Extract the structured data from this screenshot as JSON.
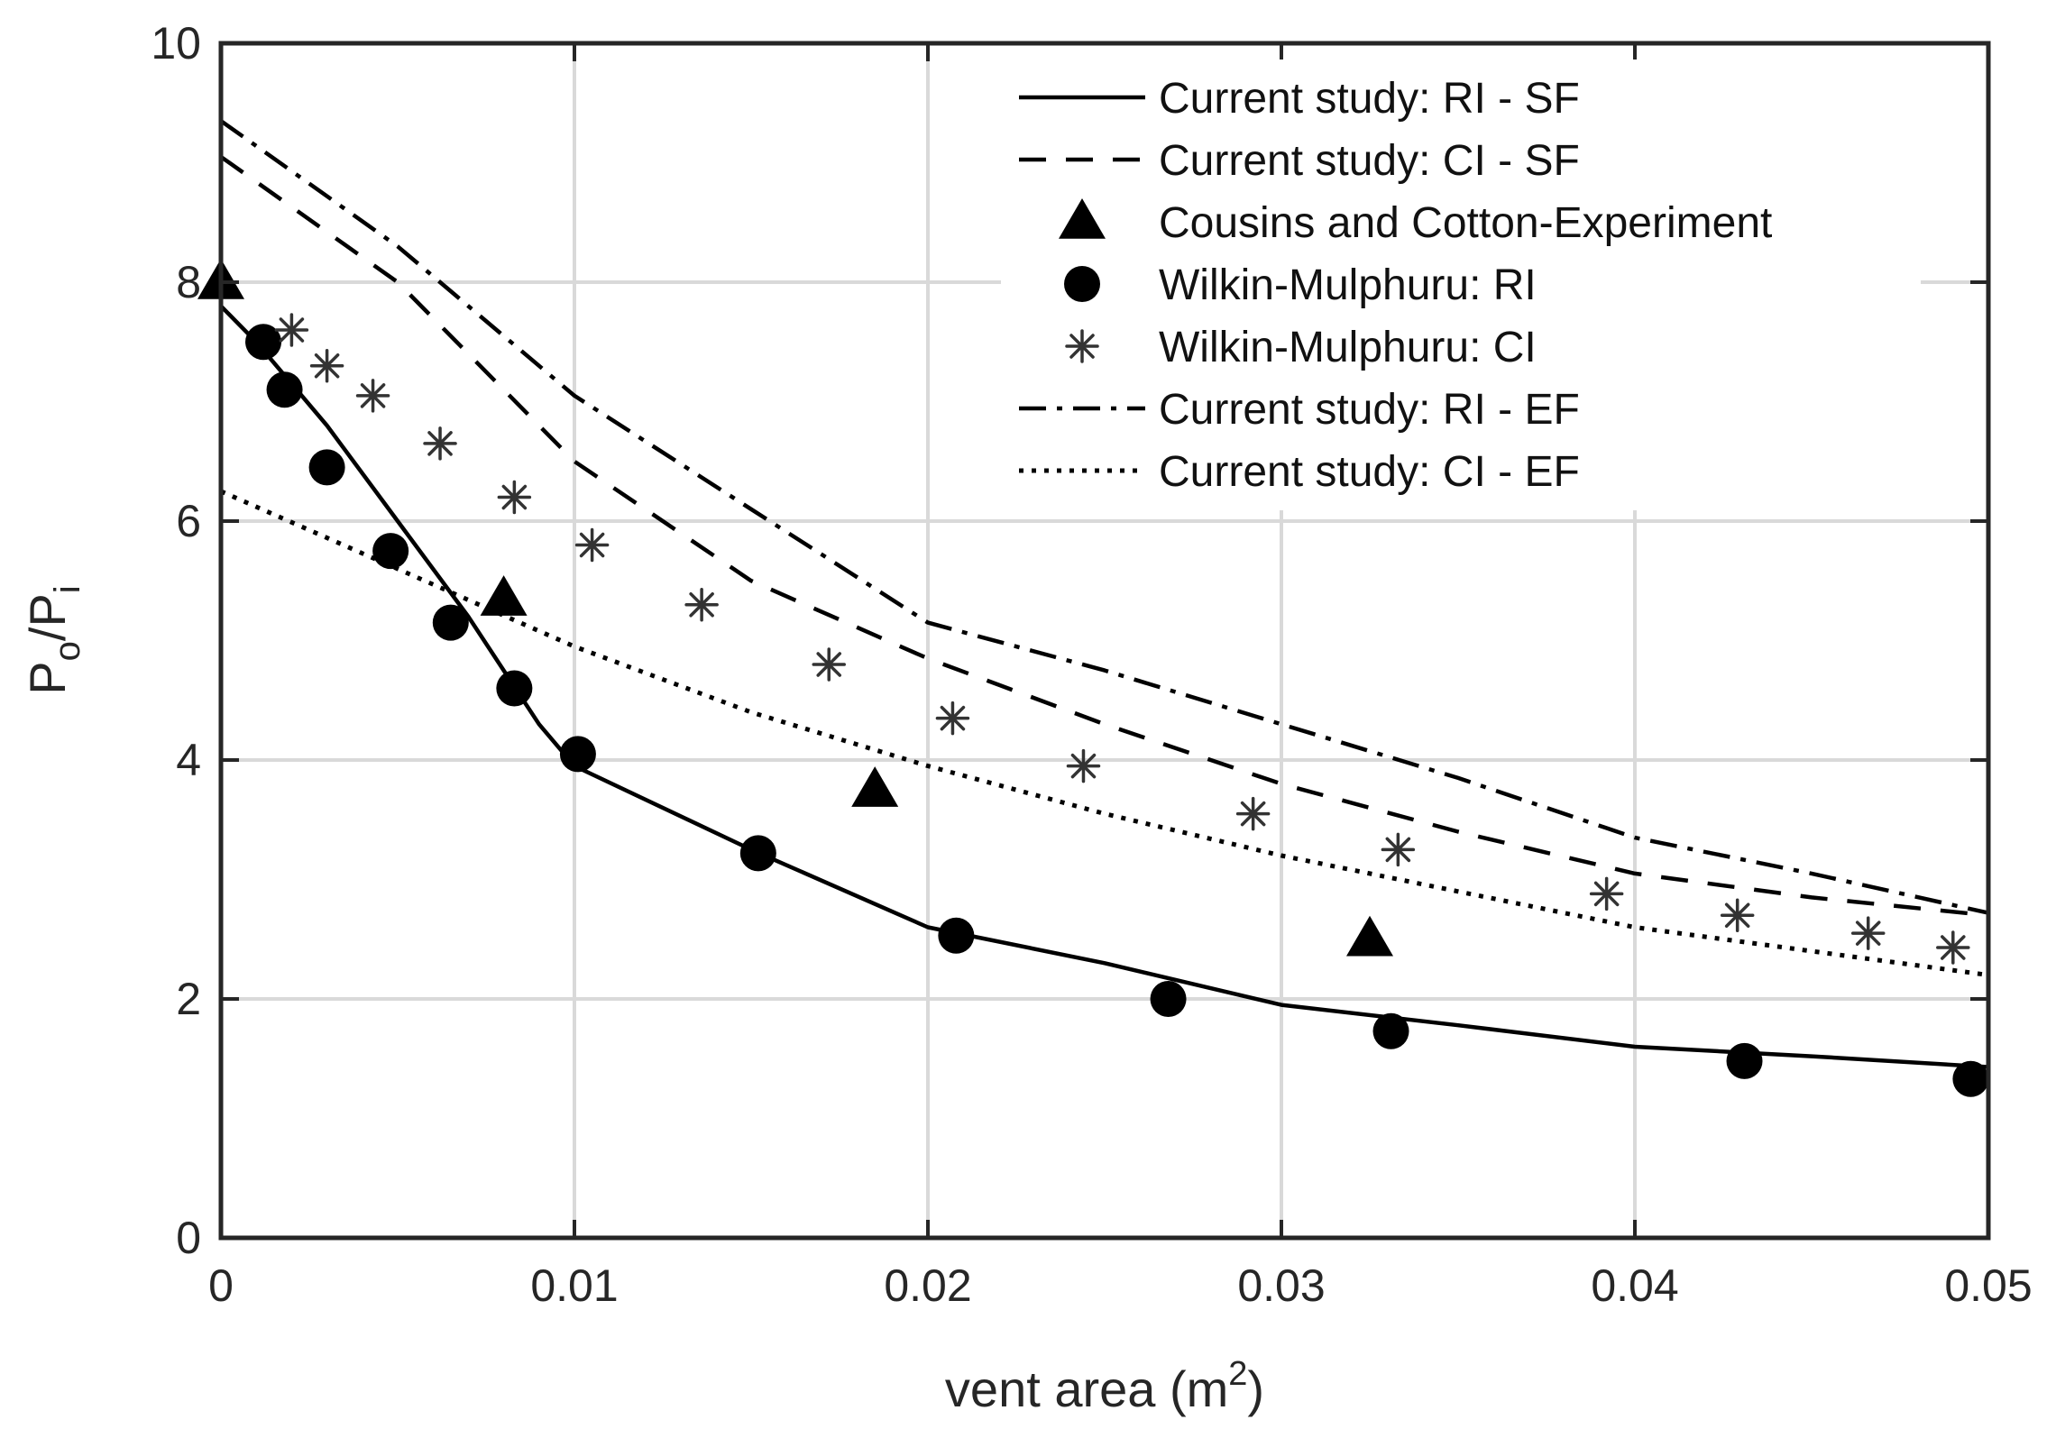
{
  "chart_data": {
    "type": "line",
    "xlabel": "vent area (m",
    "xlabel_sup": "2",
    "xlabel_close": ")",
    "ylabel_main": "P",
    "ylabel_sub1": "o",
    "ylabel_slash": "/P",
    "ylabel_sub2": "i",
    "xlim": [
      0,
      0.05
    ],
    "ylim": [
      0,
      10
    ],
    "xticks": [
      {
        "value": 0,
        "label": "0"
      },
      {
        "value": 0.01,
        "label": "0.01"
      },
      {
        "value": 0.02,
        "label": "0.02"
      },
      {
        "value": 0.03,
        "label": "0.03"
      },
      {
        "value": 0.04,
        "label": "0.04"
      },
      {
        "value": 0.05,
        "label": "0.05"
      }
    ],
    "yticks": [
      {
        "value": 0,
        "label": "0"
      },
      {
        "value": 2,
        "label": "2"
      },
      {
        "value": 4,
        "label": "4"
      },
      {
        "value": 6,
        "label": "6"
      },
      {
        "value": 8,
        "label": "8"
      },
      {
        "value": 10,
        "label": "10"
      }
    ],
    "grid": true,
    "legend_position": "top-right",
    "series": [
      {
        "name": "Current study: RI - SF",
        "style": "solid",
        "color": "#000000",
        "points": [
          [
            0,
            7.8
          ],
          [
            0.001,
            7.5
          ],
          [
            0.003,
            6.8
          ],
          [
            0.005,
            6.0
          ],
          [
            0.007,
            5.2
          ],
          [
            0.009,
            4.3
          ],
          [
            0.01,
            3.95
          ],
          [
            0.015,
            3.25
          ],
          [
            0.02,
            2.6
          ],
          [
            0.025,
            2.3
          ],
          [
            0.03,
            1.95
          ],
          [
            0.035,
            1.78
          ],
          [
            0.04,
            1.6
          ],
          [
            0.045,
            1.52
          ],
          [
            0.05,
            1.43
          ]
        ]
      },
      {
        "name": "Current study: CI - SF",
        "style": "dashed",
        "color": "#000000",
        "points": [
          [
            0,
            9.05
          ],
          [
            0.005,
            8.0
          ],
          [
            0.01,
            6.5
          ],
          [
            0.015,
            5.5
          ],
          [
            0.02,
            4.85
          ],
          [
            0.025,
            4.3
          ],
          [
            0.03,
            3.8
          ],
          [
            0.035,
            3.4
          ],
          [
            0.04,
            3.05
          ],
          [
            0.045,
            2.85
          ],
          [
            0.05,
            2.7
          ]
        ]
      },
      {
        "name": "Cousins and Cotton-Experiment",
        "style": "marker",
        "marker": "triangle",
        "color": "#000000",
        "points": [
          [
            0,
            8.0
          ],
          [
            0.008,
            5.35
          ],
          [
            0.0185,
            3.75
          ],
          [
            0.0325,
            2.5
          ]
        ]
      },
      {
        "name": "Wilkin-Mulphuru: RI",
        "style": "marker",
        "marker": "circle",
        "color": "#000000",
        "points": [
          [
            0.0012,
            7.5
          ],
          [
            0.0018,
            7.1
          ],
          [
            0.003,
            6.45
          ],
          [
            0.0048,
            5.75
          ],
          [
            0.0065,
            5.15
          ],
          [
            0.0083,
            4.6
          ],
          [
            0.0101,
            4.05
          ],
          [
            0.0152,
            3.22
          ],
          [
            0.0208,
            2.53
          ],
          [
            0.0268,
            2.0
          ],
          [
            0.0331,
            1.73
          ],
          [
            0.0431,
            1.48
          ],
          [
            0.0495,
            1.33
          ]
        ]
      },
      {
        "name": "Wilkin-Mulphuru: CI",
        "style": "marker",
        "marker": "asterisk",
        "color": "#333333",
        "points": [
          [
            0.002,
            7.6
          ],
          [
            0.003,
            7.3
          ],
          [
            0.0043,
            7.05
          ],
          [
            0.0062,
            6.65
          ],
          [
            0.0083,
            6.2
          ],
          [
            0.0105,
            5.8
          ],
          [
            0.0136,
            5.3
          ],
          [
            0.0172,
            4.8
          ],
          [
            0.0207,
            4.35
          ],
          [
            0.0244,
            3.95
          ],
          [
            0.0292,
            3.55
          ],
          [
            0.0333,
            3.25
          ],
          [
            0.0392,
            2.88
          ],
          [
            0.0429,
            2.7
          ],
          [
            0.0466,
            2.55
          ],
          [
            0.049,
            2.43
          ]
        ]
      },
      {
        "name": "Current study: RI - EF",
        "style": "dashdot",
        "color": "#000000",
        "points": [
          [
            0,
            9.35
          ],
          [
            0.005,
            8.3
          ],
          [
            0.01,
            7.05
          ],
          [
            0.015,
            6.1
          ],
          [
            0.02,
            5.15
          ],
          [
            0.025,
            4.75
          ],
          [
            0.03,
            4.3
          ],
          [
            0.035,
            3.85
          ],
          [
            0.04,
            3.35
          ],
          [
            0.045,
            3.05
          ],
          [
            0.05,
            2.72
          ]
        ]
      },
      {
        "name": "Current study: CI - EF",
        "style": "dotted",
        "color": "#000000",
        "points": [
          [
            0,
            6.25
          ],
          [
            0.005,
            5.6
          ],
          [
            0.01,
            4.95
          ],
          [
            0.015,
            4.4
          ],
          [
            0.02,
            3.95
          ],
          [
            0.025,
            3.55
          ],
          [
            0.03,
            3.2
          ],
          [
            0.035,
            2.9
          ],
          [
            0.04,
            2.6
          ],
          [
            0.045,
            2.4
          ],
          [
            0.05,
            2.2
          ]
        ]
      }
    ]
  }
}
